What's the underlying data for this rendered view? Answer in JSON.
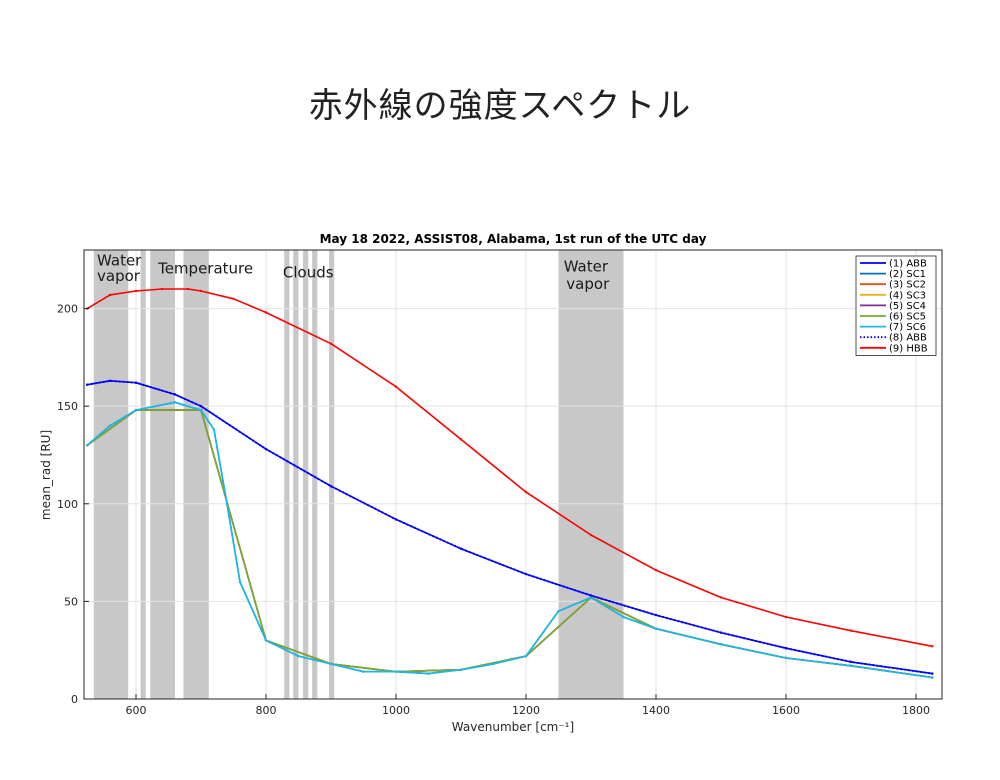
{
  "slide_title": "赤外線の強度スペクトル",
  "chart_data": {
    "type": "line",
    "title": "May 18 2022, ASSIST08, Alabama, 1st run of the UTC day",
    "xlabel": "Wavenumber [cm⁻¹]",
    "ylabel": "mean_rad [RU]",
    "xlim": [
      520,
      1840
    ],
    "ylim": [
      0,
      230
    ],
    "xticks": [
      600,
      800,
      1000,
      1200,
      1400,
      1600,
      1800
    ],
    "yticks": [
      0,
      50,
      100,
      150,
      200
    ],
    "grid": true,
    "legend_position": "top-right",
    "shaded_bands": [
      [
        535,
        588
      ],
      [
        607,
        615
      ],
      [
        622,
        660
      ],
      [
        673,
        712
      ],
      [
        828,
        836
      ],
      [
        842,
        850
      ],
      [
        857,
        865
      ],
      [
        871,
        879
      ],
      [
        897,
        905
      ],
      [
        1250,
        1350
      ]
    ],
    "annotations": [
      {
        "text": "Water",
        "x": 540,
        "y": 222
      },
      {
        "text": "vapor",
        "x": 540,
        "y": 214
      },
      {
        "text": "Temperature",
        "x": 634,
        "y": 218
      },
      {
        "text": "Clouds",
        "x": 826,
        "y": 216
      },
      {
        "text": "Water",
        "x": 1258,
        "y": 219
      },
      {
        "text": "vapor",
        "x": 1262,
        "y": 210
      }
    ],
    "series": [
      {
        "name": "(1) ABB",
        "color": "#0000ff",
        "style": "solid",
        "x": [
          525,
          560,
          600,
          660,
          700,
          800,
          900,
          1000,
          1100,
          1200,
          1300,
          1400,
          1500,
          1600,
          1700,
          1825
        ],
        "y": [
          161,
          163,
          162,
          156,
          150,
          128,
          109,
          92,
          77,
          64,
          53,
          43,
          34,
          26,
          19,
          13
        ]
      },
      {
        "name": "(2) SC1",
        "color": "#0072bd",
        "style": "solid",
        "x": [
          525,
          560,
          600,
          660,
          700,
          720,
          740,
          760,
          800,
          850,
          900,
          950,
          1000,
          1050,
          1100,
          1150,
          1200,
          1250,
          1300,
          1350,
          1400,
          1500,
          1600,
          1700,
          1825
        ],
        "y": [
          130,
          140,
          148,
          152,
          148,
          138,
          100,
          60,
          30,
          22,
          18,
          14,
          14,
          13,
          15,
          18,
          22,
          45,
          52,
          42,
          36,
          28,
          21,
          17,
          11
        ]
      },
      {
        "name": "(3) SC2",
        "color": "#d95319",
        "style": "solid",
        "x": [
          525,
          600,
          700,
          800,
          900,
          1000,
          1100,
          1200,
          1300,
          1400,
          1500,
          1600,
          1700,
          1825
        ],
        "y": [
          130,
          148,
          148,
          30,
          18,
          14,
          15,
          22,
          52,
          36,
          28,
          21,
          17,
          11
        ]
      },
      {
        "name": "(4) SC3",
        "color": "#edb120",
        "style": "solid",
        "x": [
          525,
          600,
          700,
          800,
          900,
          1000,
          1100,
          1200,
          1300,
          1400,
          1500,
          1600,
          1700,
          1825
        ],
        "y": [
          130,
          148,
          148,
          30,
          18,
          14,
          15,
          22,
          52,
          36,
          28,
          21,
          17,
          11
        ]
      },
      {
        "name": "(5) SC4",
        "color": "#7e2f8e",
        "style": "solid",
        "x": [
          525,
          600,
          700,
          800,
          900,
          1000,
          1100,
          1200,
          1300,
          1400,
          1500,
          1600,
          1700,
          1825
        ],
        "y": [
          130,
          148,
          148,
          30,
          18,
          14,
          15,
          22,
          52,
          36,
          28,
          21,
          17,
          11
        ]
      },
      {
        "name": "(6) SC5",
        "color": "#77ac30",
        "style": "solid",
        "x": [
          525,
          600,
          700,
          800,
          900,
          1000,
          1100,
          1200,
          1300,
          1400,
          1500,
          1600,
          1700,
          1825
        ],
        "y": [
          130,
          148,
          148,
          30,
          18,
          14,
          15,
          22,
          52,
          36,
          28,
          21,
          17,
          11
        ]
      },
      {
        "name": "(7) SC6",
        "color": "#1ab8e6",
        "style": "solid",
        "x": [
          525,
          560,
          600,
          660,
          700,
          720,
          740,
          760,
          800,
          850,
          900,
          950,
          1000,
          1050,
          1100,
          1150,
          1200,
          1250,
          1300,
          1350,
          1400,
          1500,
          1600,
          1700,
          1825
        ],
        "y": [
          130,
          140,
          148,
          152,
          148,
          138,
          100,
          60,
          30,
          22,
          18,
          14,
          14,
          13,
          15,
          18,
          22,
          45,
          52,
          42,
          36,
          28,
          21,
          17,
          11
        ]
      },
      {
        "name": "(8) ABB",
        "color": "#0000ff",
        "style": "dotted",
        "x": [
          525,
          560,
          600,
          660,
          700,
          800,
          900,
          1000,
          1100,
          1200,
          1300,
          1400,
          1500,
          1600,
          1700,
          1825
        ],
        "y": [
          161,
          163,
          162,
          156,
          150,
          128,
          109,
          92,
          77,
          64,
          53,
          43,
          34,
          26,
          19,
          13
        ]
      },
      {
        "name": "(9) HBB",
        "color": "#ff0000",
        "style": "solid",
        "x": [
          525,
          560,
          600,
          640,
          680,
          700,
          750,
          800,
          900,
          1000,
          1100,
          1200,
          1300,
          1400,
          1500,
          1600,
          1700,
          1825
        ],
        "y": [
          200,
          207,
          209,
          210,
          210,
          209,
          205,
          198,
          182,
          160,
          133,
          106,
          84,
          66,
          52,
          42,
          35,
          27
        ]
      }
    ]
  }
}
